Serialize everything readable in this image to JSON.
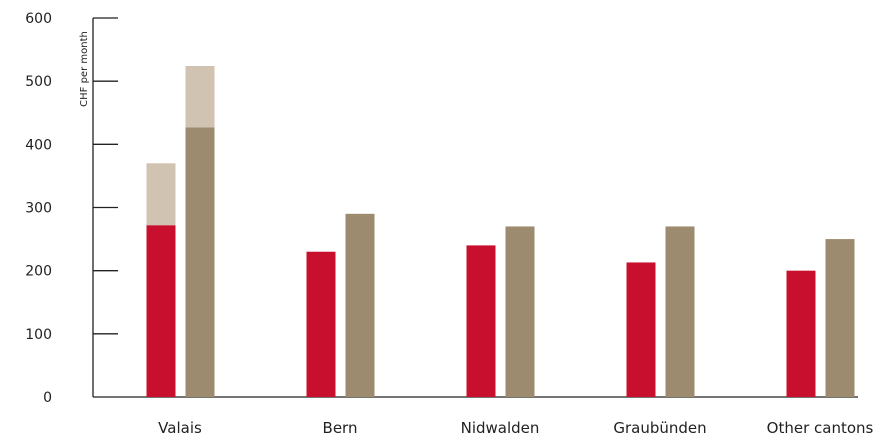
{
  "chart_data": {
    "type": "bar",
    "stacked_series": true,
    "categories": [
      "Valais",
      "Bern",
      "Nidwalden",
      "Graubünden",
      "Other cantons"
    ],
    "ylabel": "CHF per month",
    "ylim": [
      0,
      600
    ],
    "yticks": [
      0,
      100,
      200,
      300,
      400,
      500,
      600
    ],
    "grid": false,
    "legend": "none",
    "groups": [
      {
        "bars": [
          {
            "segments": [
              {
                "value": 272,
                "color": "#c8102e"
              },
              {
                "value": 98,
                "color": "#d1c3b1"
              }
            ]
          },
          {
            "segments": [
              {
                "value": 427,
                "color": "#9c8b6e"
              },
              {
                "value": 97,
                "color": "#d1c3b1"
              }
            ]
          }
        ]
      },
      {
        "bars": [
          {
            "segments": [
              {
                "value": 230,
                "color": "#c8102e"
              }
            ]
          },
          {
            "segments": [
              {
                "value": 290,
                "color": "#9c8b6e"
              }
            ]
          }
        ]
      },
      {
        "bars": [
          {
            "segments": [
              {
                "value": 240,
                "color": "#c8102e"
              }
            ]
          },
          {
            "segments": [
              {
                "value": 270,
                "color": "#9c8b6e"
              }
            ]
          }
        ]
      },
      {
        "bars": [
          {
            "segments": [
              {
                "value": 213,
                "color": "#c8102e"
              }
            ]
          },
          {
            "segments": [
              {
                "value": 270,
                "color": "#9c8b6e"
              }
            ]
          }
        ]
      },
      {
        "bars": [
          {
            "segments": [
              {
                "value": 200,
                "color": "#c8102e"
              }
            ]
          },
          {
            "segments": [
              {
                "value": 250,
                "color": "#9c8b6e"
              }
            ]
          }
        ]
      }
    ]
  }
}
